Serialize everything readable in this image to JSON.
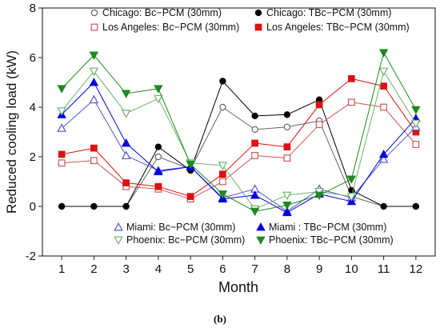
{
  "chart_data": {
    "type": "line",
    "caption": "(b)",
    "xlabel": "Month",
    "ylabel": "Reduced cooling load (kW)",
    "xlim": [
      0.4,
      12.6
    ],
    "ylim": [
      -2,
      8
    ],
    "x": [
      1,
      2,
      3,
      4,
      5,
      6,
      7,
      8,
      9,
      10,
      11,
      12
    ],
    "x_ticks": [
      "1",
      "2",
      "3",
      "4",
      "5",
      "6",
      "7",
      "8",
      "9",
      "10",
      "11",
      "12"
    ],
    "y_ticks": [
      "-2",
      "0",
      "2",
      "4",
      "6",
      "8"
    ],
    "y_tick_values": [
      -2,
      0,
      2,
      4,
      6,
      8
    ],
    "grid": false,
    "legend_positions": [
      "top",
      "bottom"
    ],
    "series": [
      {
        "name": "Chicago: Bc−PCM (30mm)",
        "color": "#666666",
        "marker": "circle-open",
        "values": [
          0,
          0,
          0,
          2.0,
          1.5,
          4.0,
          3.1,
          3.2,
          3.45,
          0.4,
          0,
          0
        ]
      },
      {
        "name": "Chicago: TBc−PCM (30mm)",
        "color": "#000000",
        "marker": "circle-filled",
        "values": [
          0,
          0,
          0,
          2.4,
          1.45,
          5.05,
          3.65,
          3.7,
          4.3,
          0.65,
          0,
          0
        ]
      },
      {
        "name": "Los Angeles: Bc−PCM (30mm)",
        "color": "#c85a5a",
        "marker": "square-open",
        "values": [
          1.75,
          1.85,
          0.8,
          0.7,
          0.3,
          1.0,
          2.05,
          1.95,
          3.3,
          4.2,
          4.0,
          2.5
        ]
      },
      {
        "name": "Los Angeles: TBc−PCM (30mm)",
        "color": "#dd1111",
        "marker": "square-filled",
        "values": [
          2.1,
          2.35,
          0.95,
          0.8,
          0.4,
          1.3,
          2.55,
          2.4,
          4.1,
          5.15,
          4.85,
          3.0
        ]
      },
      {
        "name": "Miami: Bc−PCM (30mm)",
        "color": "#5555cc",
        "marker": "triangle-up-open",
        "values": [
          3.15,
          4.3,
          2.05,
          1.45,
          1.6,
          0.35,
          0.7,
          -0.2,
          0.7,
          0.35,
          1.9,
          3.2
        ]
      },
      {
        "name": "Miami : TBc−PCM (30mm)",
        "color": "#0000dd",
        "marker": "triangle-up-filled",
        "values": [
          3.7,
          5.0,
          2.55,
          1.4,
          1.6,
          0.3,
          0.45,
          -0.25,
          0.5,
          0.2,
          2.1,
          3.55
        ]
      },
      {
        "name": "Phoenix: Bc−PCM (30mm)",
        "color": "#6fb36f",
        "marker": "triangle-down-open",
        "values": [
          3.85,
          5.45,
          3.75,
          4.35,
          1.75,
          1.65,
          -0.1,
          0.45,
          0.6,
          0.4,
          5.45,
          3.35
        ]
      },
      {
        "name": "Phoenix: TBc−PCM (30mm)",
        "color": "#1f8a1f",
        "marker": "triangle-down-filled",
        "values": [
          4.75,
          6.1,
          4.55,
          4.75,
          1.7,
          0.5,
          -0.2,
          0.05,
          0.45,
          1.1,
          6.2,
          3.9
        ]
      }
    ]
  }
}
